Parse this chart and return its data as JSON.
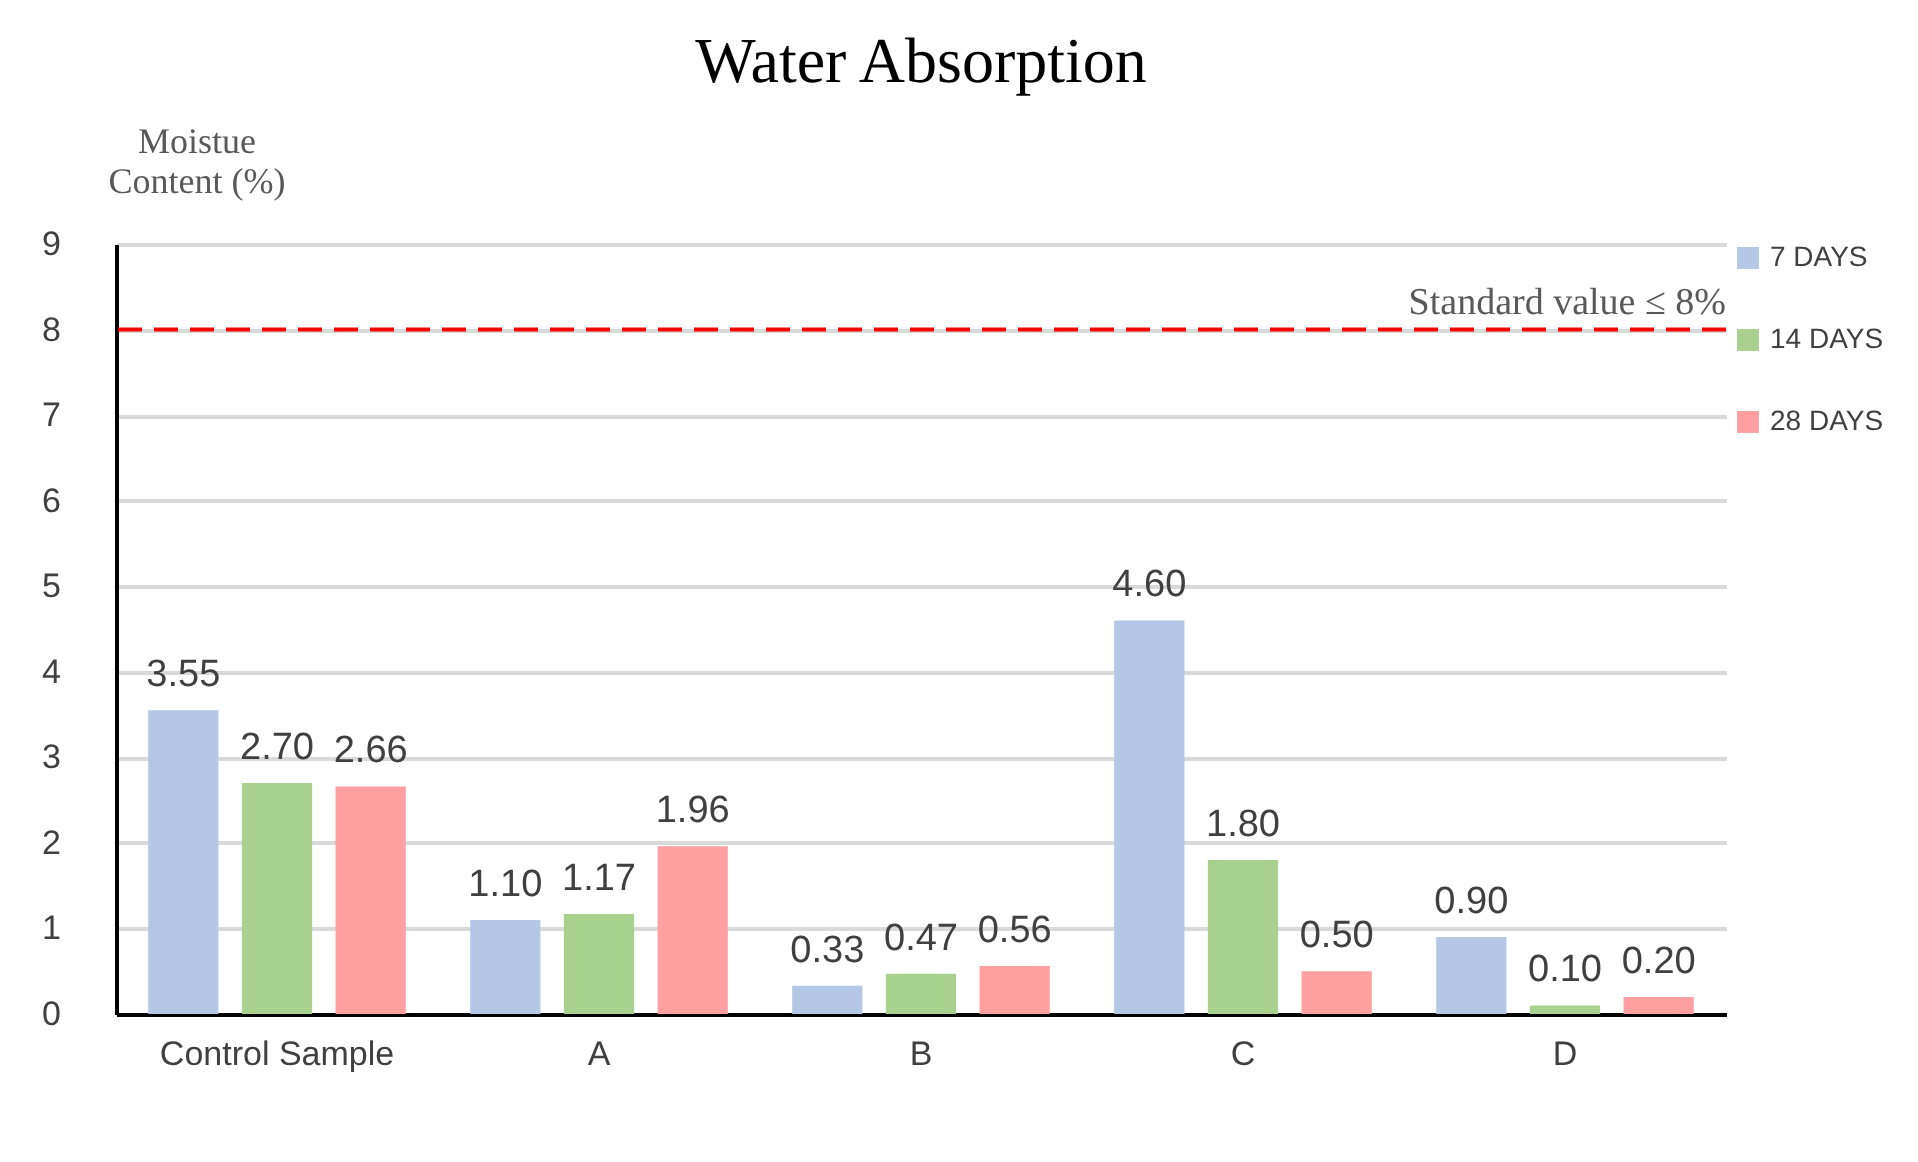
{
  "chart_data": {
    "type": "bar",
    "title": "Water Absorption",
    "ylabel": "Moistue Content (%)",
    "categories": [
      "Control Sample",
      "A",
      "B",
      "C",
      "D"
    ],
    "series": [
      {
        "name": "7 DAYS",
        "color": "#b4c7e7",
        "values": [
          3.55,
          1.1,
          0.33,
          4.6,
          0.9
        ],
        "value_labels": [
          "3.55",
          "1.10",
          "0.33",
          "4.60",
          "0.90"
        ]
      },
      {
        "name": "14 DAYS",
        "color": "#a9d18e",
        "values": [
          2.7,
          1.17,
          0.47,
          1.8,
          0.1
        ],
        "value_labels": [
          "2.70",
          "1.17",
          "0.47",
          "1.80",
          "0.10"
        ]
      },
      {
        "name": "28 DAYS",
        "color": "#ff9f9f",
        "values": [
          2.66,
          1.96,
          0.56,
          0.5,
          0.2
        ],
        "value_labels": [
          "2.66",
          "1.96",
          "0.56",
          "0.50",
          "0.20"
        ]
      }
    ],
    "ylim": [
      0,
      9
    ],
    "yticks": [
      0,
      1,
      2,
      3,
      4,
      5,
      6,
      7,
      8,
      9
    ],
    "grid": "y",
    "legend": "right",
    "ref_lines": [
      {
        "axis": "y",
        "value": 8,
        "label": "Standard value ≤ 8%",
        "color": "#ff0000",
        "line_style": "dashed"
      }
    ]
  }
}
